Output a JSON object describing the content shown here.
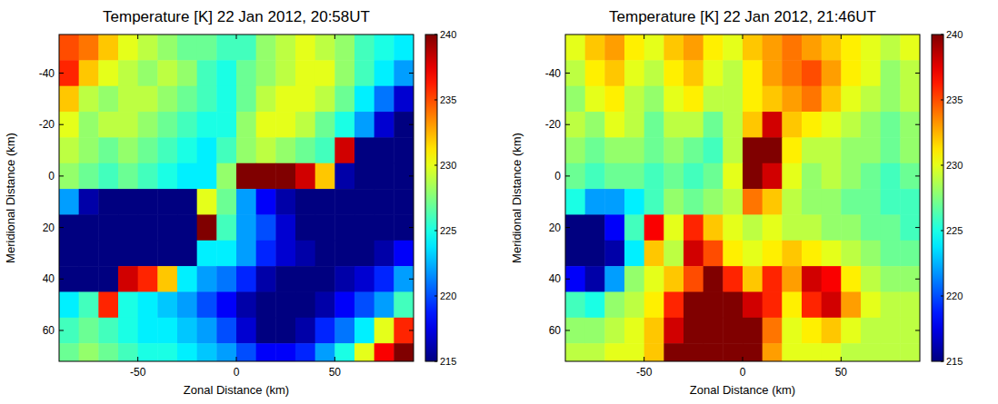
{
  "chart_data": [
    {
      "type": "heatmap",
      "title": "Temperature [K] 22 Jan 2012, 20:58UT",
      "x_label": "Zonal Distance (km)",
      "y_label": "Meridional Distance (km)",
      "x": [
        -85,
        -75,
        -65,
        -55,
        -45,
        -35,
        -25,
        -15,
        -5,
        5,
        15,
        25,
        35,
        45,
        55,
        65,
        75,
        85
      ],
      "y": [
        -50,
        -40,
        -30,
        -20,
        -10,
        0,
        10,
        20,
        30,
        40,
        50,
        60,
        70
      ],
      "values": [
        [
          235,
          234,
          232,
          230,
          229,
          228,
          227,
          227,
          226,
          226,
          228,
          229,
          230,
          229,
          228,
          226,
          225,
          224
        ],
        [
          236,
          232,
          230,
          229,
          228,
          229,
          228,
          226,
          225,
          227,
          228,
          229,
          230,
          230,
          228,
          226,
          224,
          222
        ],
        [
          232,
          229,
          228,
          229,
          229,
          228,
          227,
          226,
          225,
          227,
          229,
          230,
          230,
          229,
          227,
          224,
          221,
          217
        ],
        [
          230,
          228,
          229,
          229,
          228,
          227,
          226,
          225,
          225,
          228,
          230,
          230,
          229,
          227,
          225,
          222,
          217,
          215
        ],
        [
          229,
          228,
          227,
          228,
          227,
          226,
          225,
          224,
          226,
          228,
          229,
          228,
          227,
          226,
          238,
          215,
          215,
          215
        ],
        [
          228,
          227,
          226,
          227,
          226,
          225,
          224,
          224,
          228,
          240,
          240,
          240,
          238,
          232,
          216,
          215,
          215,
          215
        ],
        [
          222,
          216,
          215,
          215,
          215,
          215,
          215,
          230,
          227,
          222,
          218,
          216,
          215,
          215,
          215,
          215,
          215,
          215
        ],
        [
          215,
          215,
          215,
          215,
          215,
          215,
          215,
          240,
          226,
          222,
          220,
          217,
          215,
          215,
          215,
          215,
          215,
          215
        ],
        [
          215,
          215,
          215,
          215,
          215,
          215,
          215,
          224,
          224,
          222,
          219,
          217,
          216,
          215,
          215,
          215,
          216,
          218
        ],
        [
          215,
          215,
          215,
          238,
          236,
          232,
          224,
          222,
          221,
          219,
          216,
          215,
          215,
          215,
          216,
          217,
          219,
          222
        ],
        [
          224,
          226,
          236,
          225,
          224,
          223,
          222,
          220,
          218,
          216,
          215,
          215,
          215,
          216,
          218,
          220,
          222,
          226
        ],
        [
          226,
          227,
          226,
          225,
          224,
          224,
          223,
          222,
          220,
          217,
          215,
          215,
          216,
          219,
          221,
          224,
          230,
          236
        ],
        [
          227,
          228,
          227,
          226,
          225,
          225,
          224,
          223,
          222,
          220,
          218,
          218,
          219,
          222,
          225,
          230,
          237,
          240
        ]
      ],
      "xlim": [
        -90,
        90
      ],
      "ylim": [
        -55,
        72
      ],
      "xticks": [
        -50,
        0,
        50
      ],
      "yticks": [
        -40,
        -20,
        0,
        20,
        40,
        60
      ],
      "zlim": [
        215,
        240
      ],
      "zticks": [
        215,
        220,
        225,
        230,
        235,
        240
      ]
    },
    {
      "type": "heatmap",
      "title": "Temperature [K] 22 Jan 2012, 21:46UT",
      "x_label": "Zonal Distance (km)",
      "y_label": "Meridional Distance (km)",
      "x": [
        -85,
        -75,
        -65,
        -55,
        -45,
        -35,
        -25,
        -15,
        -5,
        5,
        15,
        25,
        35,
        45,
        55,
        65,
        75,
        85
      ],
      "y": [
        -50,
        -40,
        -30,
        -20,
        -10,
        0,
        10,
        20,
        30,
        40,
        50,
        60,
        70
      ],
      "values": [
        [
          230,
          232,
          233,
          231,
          230,
          232,
          233,
          231,
          230,
          232,
          233,
          234,
          233,
          232,
          231,
          230,
          229,
          230
        ],
        [
          229,
          231,
          232,
          230,
          229,
          231,
          232,
          230,
          229,
          231,
          233,
          234,
          235,
          233,
          231,
          230,
          228,
          229
        ],
        [
          228,
          230,
          231,
          229,
          228,
          230,
          231,
          229,
          229,
          231,
          232,
          233,
          234,
          232,
          230,
          229,
          228,
          229
        ],
        [
          229,
          228,
          230,
          229,
          227,
          229,
          229,
          227,
          229,
          232,
          238,
          232,
          231,
          230,
          229,
          228,
          227,
          228
        ],
        [
          228,
          227,
          228,
          228,
          227,
          228,
          227,
          226,
          229,
          240,
          240,
          231,
          229,
          229,
          228,
          228,
          227,
          228
        ],
        [
          227,
          226,
          227,
          227,
          226,
          227,
          226,
          227,
          230,
          240,
          238,
          230,
          228,
          229,
          228,
          227,
          226,
          227
        ],
        [
          225,
          222,
          222,
          224,
          226,
          228,
          227,
          228,
          229,
          234,
          232,
          229,
          228,
          228,
          227,
          227,
          226,
          226
        ],
        [
          215,
          215,
          218,
          226,
          237,
          230,
          236,
          232,
          230,
          229,
          230,
          229,
          229,
          228,
          228,
          227,
          227,
          226
        ],
        [
          215,
          215,
          216,
          224,
          232,
          229,
          238,
          235,
          231,
          230,
          231,
          232,
          231,
          230,
          229,
          228,
          227,
          227
        ],
        [
          218,
          216,
          222,
          228,
          230,
          232,
          235,
          240,
          236,
          232,
          236,
          233,
          238,
          237,
          231,
          229,
          228,
          228
        ],
        [
          226,
          225,
          228,
          229,
          231,
          236,
          240,
          240,
          240,
          238,
          236,
          231,
          236,
          238,
          233,
          230,
          229,
          229
        ],
        [
          228,
          228,
          229,
          230,
          232,
          238,
          240,
          240,
          240,
          240,
          234,
          230,
          231,
          232,
          230,
          229,
          229,
          229
        ],
        [
          229,
          229,
          230,
          230,
          232,
          240,
          240,
          240,
          240,
          240,
          233,
          230,
          230,
          230,
          229,
          229,
          229,
          229
        ]
      ],
      "xlim": [
        -90,
        90
      ],
      "ylim": [
        -55,
        72
      ],
      "xticks": [
        -50,
        0,
        50
      ],
      "yticks": [
        -40,
        -20,
        0,
        20,
        40,
        60
      ],
      "zlim": [
        215,
        240
      ],
      "zticks": [
        215,
        220,
        225,
        230,
        235,
        240
      ]
    }
  ]
}
